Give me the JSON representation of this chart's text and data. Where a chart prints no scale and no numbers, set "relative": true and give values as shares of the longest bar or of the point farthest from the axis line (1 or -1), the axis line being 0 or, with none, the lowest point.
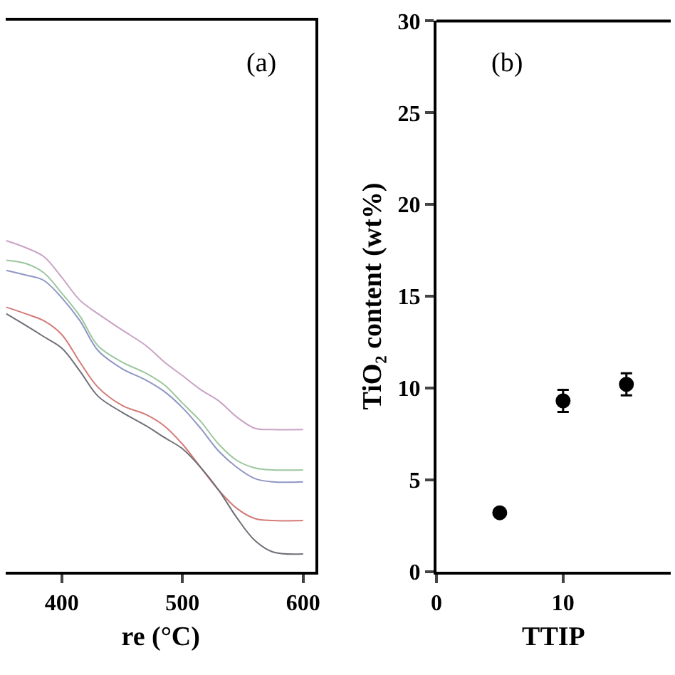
{
  "chart_data": [
    {
      "type": "line",
      "relative": true,
      "xlabel": "re (°C)",
      "annotations": [
        "(a)"
      ],
      "xlim": [
        353.5,
        610.5
      ],
      "xticks": [
        400,
        500,
        600
      ],
      "marker": "none",
      "line_style": "solid",
      "x": [
        354,
        370,
        385,
        400,
        415,
        430,
        450,
        470,
        485,
        500,
        515,
        530,
        545,
        560,
        575,
        600
      ],
      "series": [
        {
          "color": "#c9a3c4",
          "values": [
            1.0,
            0.979,
            0.952,
            0.889,
            0.82,
            0.779,
            0.73,
            0.682,
            0.633,
            0.592,
            0.55,
            0.516,
            0.467,
            0.433,
            0.429,
            0.429
          ]
        },
        {
          "color": "#9cc79e",
          "values": [
            0.941,
            0.931,
            0.903,
            0.841,
            0.772,
            0.682,
            0.633,
            0.599,
            0.564,
            0.509,
            0.454,
            0.385,
            0.336,
            0.313,
            0.307,
            0.307
          ]
        },
        {
          "color": "#8f96c4",
          "values": [
            0.91,
            0.896,
            0.88,
            0.827,
            0.758,
            0.668,
            0.613,
            0.578,
            0.544,
            0.495,
            0.433,
            0.364,
            0.315,
            0.281,
            0.271,
            0.271
          ]
        },
        {
          "color": "#d47b78",
          "values": [
            0.799,
            0.779,
            0.758,
            0.716,
            0.633,
            0.557,
            0.502,
            0.474,
            0.44,
            0.385,
            0.315,
            0.246,
            0.191,
            0.16,
            0.154,
            0.154
          ]
        },
        {
          "color": "#6f6f78",
          "values": [
            0.779,
            0.744,
            0.71,
            0.675,
            0.606,
            0.53,
            0.481,
            0.44,
            0.405,
            0.371,
            0.315,
            0.246,
            0.163,
            0.094,
            0.059,
            0.053
          ]
        }
      ]
    },
    {
      "type": "scatter",
      "xlabel": "TTIP",
      "ylabel": "TiO₂ content (wt%)",
      "annotations": [
        "(b)"
      ],
      "xlim": [
        0,
        18.5
      ],
      "xticks": [
        0,
        10
      ],
      "ylim": [
        0,
        30
      ],
      "yticks": [
        0,
        5,
        10,
        15,
        20,
        25,
        30
      ],
      "marker": "circle",
      "x": [
        5,
        10,
        15
      ],
      "series": [
        {
          "color": "#000000",
          "values": [
            3.2,
            9.3,
            10.2
          ],
          "errors": [
            null,
            0.6,
            0.6
          ]
        }
      ]
    }
  ]
}
